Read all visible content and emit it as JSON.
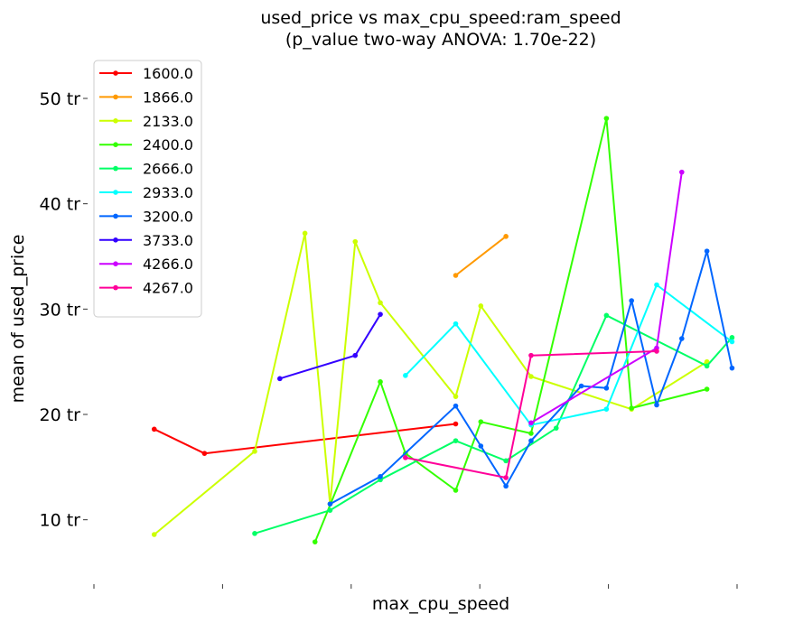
{
  "chart_data": {
    "type": "line",
    "title_line1": "used_price vs max_cpu_speed:ram_speed",
    "title_line2": "(p_value two-way ANOVA: 1.70e-22)",
    "xlabel": "max_cpu_speed",
    "ylabel": "mean of used_price",
    "x_ticks": [
      "",
      "",
      "",
      "",
      "",
      ""
    ],
    "y_ticks": [
      {
        "value": 10,
        "label": "10 tr"
      },
      {
        "value": 20,
        "label": "20 tr"
      },
      {
        "value": 30,
        "label": "30 tr"
      },
      {
        "value": 40,
        "label": "40 tr"
      },
      {
        "value": 50,
        "label": "50 tr"
      }
    ],
    "xlim": [
      -0.2,
      12.6
    ],
    "ylim": [
      3.8,
      54.2
    ],
    "grid": false,
    "legend_position": "top-left",
    "series": [
      {
        "name": "1600.0",
        "color": "#ff0000",
        "points": [
          [
            1,
            18.6
          ],
          [
            2,
            16.3
          ],
          [
            7,
            19.1
          ]
        ]
      },
      {
        "name": "1866.0",
        "color": "#ff9900",
        "points": [
          [
            7,
            33.2
          ],
          [
            8,
            36.9
          ]
        ]
      },
      {
        "name": "2133.0",
        "color": "#ccff00",
        "points": [
          [
            1,
            8.6
          ],
          [
            3,
            16.5
          ],
          [
            4,
            37.2
          ],
          [
            4.5,
            11.5
          ],
          [
            5,
            36.4
          ],
          [
            5.5,
            30.6
          ],
          [
            7,
            21.7
          ],
          [
            7.5,
            30.3
          ],
          [
            8.5,
            23.6
          ],
          [
            10.5,
            20.5
          ],
          [
            12,
            25.0
          ]
        ]
      },
      {
        "name": "2400.0",
        "color": "#33ff00",
        "points": [
          [
            4.2,
            7.9
          ],
          [
            5.5,
            23.1
          ],
          [
            6,
            16.3
          ],
          [
            7,
            12.8
          ],
          [
            7.5,
            19.3
          ],
          [
            8.5,
            18.2
          ],
          [
            10,
            48.1
          ],
          [
            10.5,
            20.6
          ],
          [
            12,
            22.4
          ]
        ]
      },
      {
        "name": "2666.0",
        "color": "#00ff66",
        "points": [
          [
            3,
            8.7
          ],
          [
            4.5,
            10.9
          ],
          [
            5.5,
            13.8
          ],
          [
            7,
            17.5
          ],
          [
            8,
            15.6
          ],
          [
            9,
            18.7
          ],
          [
            10,
            29.4
          ],
          [
            12,
            24.6
          ],
          [
            12.5,
            27.3
          ]
        ]
      },
      {
        "name": "2933.0",
        "color": "#00ffff",
        "points": [
          [
            6,
            23.7
          ],
          [
            7,
            28.6
          ],
          [
            8.5,
            19.0
          ],
          [
            10,
            20.5
          ],
          [
            11,
            32.3
          ],
          [
            12.5,
            26.9
          ]
        ]
      },
      {
        "name": "3200.0",
        "color": "#0066ff",
        "points": [
          [
            4.5,
            11.5
          ],
          [
            5.5,
            14.1
          ],
          [
            7,
            20.8
          ],
          [
            7.5,
            17.0
          ],
          [
            8,
            13.2
          ],
          [
            8.5,
            17.5
          ],
          [
            9.5,
            22.7
          ],
          [
            10,
            22.5
          ],
          [
            10.5,
            30.8
          ],
          [
            11,
            20.9
          ],
          [
            11.5,
            27.2
          ],
          [
            12,
            35.5
          ],
          [
            12.5,
            24.4
          ]
        ]
      },
      {
        "name": "3733.0",
        "color": "#3300ff",
        "points": [
          [
            3.5,
            23.4
          ],
          [
            5,
            25.6
          ],
          [
            5.5,
            29.5
          ]
        ]
      },
      {
        "name": "4266.0",
        "color": "#cc00ff",
        "points": [
          [
            8.5,
            19.2
          ],
          [
            11,
            26.3
          ],
          [
            11.5,
            43.0
          ]
        ]
      },
      {
        "name": "4267.0",
        "color": "#ff0099",
        "points": [
          [
            6,
            15.9
          ],
          [
            8,
            14.0
          ],
          [
            8.5,
            25.6
          ],
          [
            11,
            26.0
          ]
        ]
      }
    ]
  }
}
